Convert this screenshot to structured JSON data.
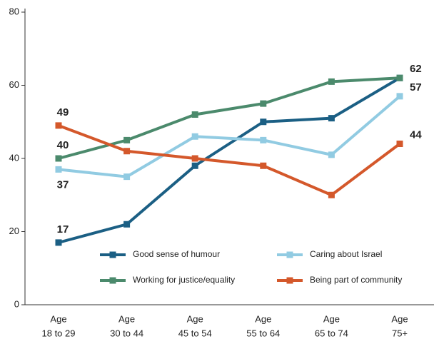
{
  "chart_data": {
    "type": "line",
    "categories": [
      [
        "Age",
        "18 to 29"
      ],
      [
        "Age",
        "30 to 44"
      ],
      [
        "Age",
        "45 to 54"
      ],
      [
        "Age",
        "55 to 64"
      ],
      [
        "Age",
        "65 to 74"
      ],
      [
        "Age",
        "75+"
      ]
    ],
    "series": [
      {
        "name": "Good sense of humour",
        "color": "#1b5f84",
        "values": [
          17,
          22,
          38,
          50,
          51,
          62
        ],
        "labeled": [
          0,
          5
        ]
      },
      {
        "name": "Caring about Israel",
        "color": "#91cbe2",
        "values": [
          37,
          35,
          46,
          45,
          41,
          57
        ],
        "labeled": [
          0,
          5
        ]
      },
      {
        "name": "Working for justice/equality",
        "color": "#4b8a6c",
        "values": [
          40,
          45,
          52,
          55,
          61,
          62
        ],
        "labeled": [
          0
        ]
      },
      {
        "name": "Being part of community",
        "color": "#d4582b",
        "values": [
          49,
          42,
          40,
          38,
          30,
          44
        ],
        "labeled": [
          0,
          5
        ]
      }
    ],
    "ylim": [
      0,
      80
    ],
    "yticks": [
      0,
      20,
      40,
      60,
      80
    ],
    "grid": false,
    "legend": "lower center"
  }
}
